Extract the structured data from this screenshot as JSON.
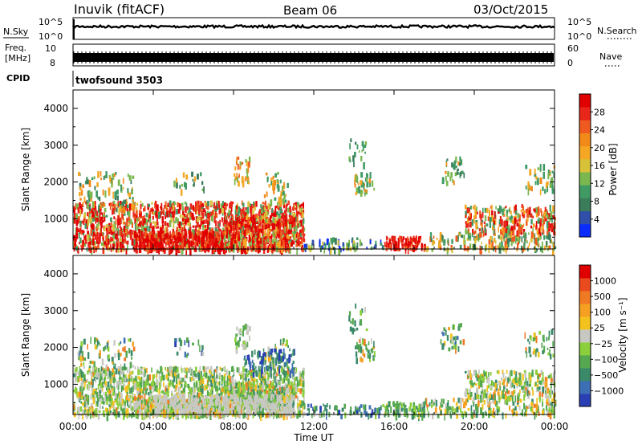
{
  "header": {
    "station": "Inuvik (fitACF)",
    "beam": "Beam 06",
    "date": "03/Oct/2015"
  },
  "strip_panels": {
    "nsky_label": "N.Sky",
    "nsearch_label": "N.Search",
    "nsky_ticks": [
      "10^5",
      "10^0"
    ],
    "nsearch_ticks": [
      "10^5",
      "10^0"
    ],
    "freq_label": "Freq.",
    "freq_unit": "[MHz]",
    "freq_ticks": [
      "10",
      "8"
    ],
    "nave_label": "Nave",
    "nave_ticks": [
      "60",
      "0"
    ],
    "cpid_label": "CPID",
    "cpid_value": "twofsound 3503"
  },
  "chart_data": [
    {
      "type": "heatmap",
      "name": "power-panel",
      "ylabel": "Slant Range [km]",
      "ylim": [
        180,
        4500
      ],
      "yticks": [
        1000,
        2000,
        3000,
        4000
      ],
      "xlim": [
        0,
        24
      ],
      "colorbar": {
        "label": "Power [dB]",
        "ticks": [
          "28",
          "24",
          "20",
          "16",
          "12",
          "8",
          "4"
        ],
        "colors": [
          "#0a2cff",
          "#2f4fa8",
          "#3b7d5a",
          "#3f9a64",
          "#7ab84f",
          "#d8c23a",
          "#f5a623",
          "#f28a1a",
          "#ee5a1f",
          "#e8261a",
          "#e00000"
        ]
      }
    },
    {
      "type": "heatmap",
      "name": "velocity-panel",
      "ylabel": "Slant Range [km]",
      "ylim": [
        180,
        4500
      ],
      "yticks": [
        1000,
        2000,
        3000,
        4000
      ],
      "xlim": [
        0,
        24
      ],
      "xticks": [
        "00:00",
        "04:00",
        "08:00",
        "12:00",
        "16:00",
        "20:00",
        "00:00"
      ],
      "xlabel": "Time UT",
      "colorbar": {
        "label": "Velocity [m s⁻¹]",
        "ticks": [
          "1000",
          "500",
          "100",
          "25",
          "−25",
          "−100",
          "−500",
          "−1000"
        ],
        "colors": [
          "#2a3fb3",
          "#3d6fb5",
          "#3a8a6a",
          "#55a84f",
          "#8ccf3c",
          "#c8c8c2",
          "#f4c21f",
          "#f5a020",
          "#f07a24",
          "#ea4b1e",
          "#e00000"
        ]
      }
    }
  ]
}
